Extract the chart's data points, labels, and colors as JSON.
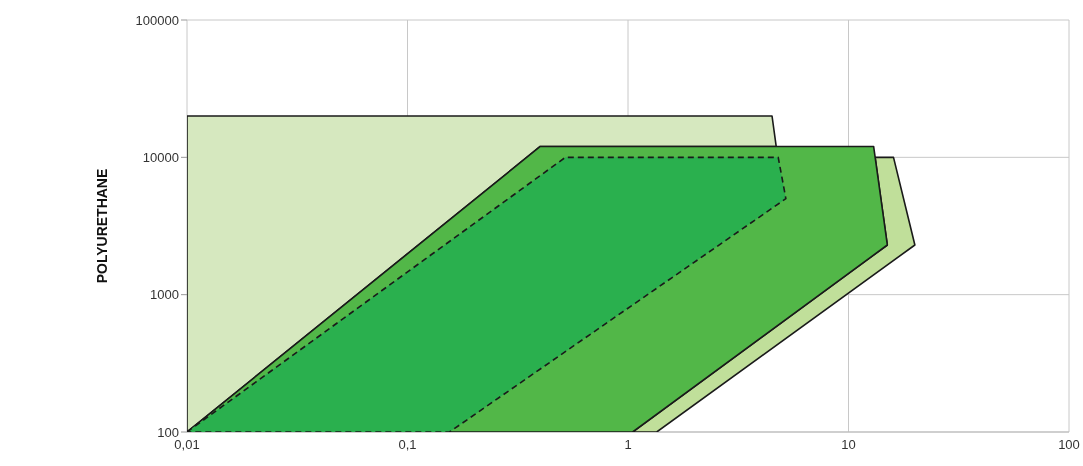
{
  "chart_data": {
    "type": "area",
    "ylabel": "POLYURETHANE",
    "log": "xy",
    "grid": true,
    "marker": "none",
    "xlim": [
      0.01,
      100
    ],
    "xticks": [
      {
        "value": 0.01,
        "label": "0,01"
      },
      {
        "value": 0.1,
        "label": "0,1"
      },
      1,
      10,
      100
    ],
    "ylim": [
      100,
      100000
    ],
    "yticks": [
      100,
      1000,
      10000,
      100000
    ],
    "series": [
      {
        "color": "#d6e8bf",
        "line_style": "solid",
        "x": [
          0.01,
          0.01,
          4.5,
          4.7,
          0.4
        ],
        "values": [
          100,
          20000,
          20000,
          12000,
          12000
        ]
      },
      {
        "color": "#c0df9a",
        "line_style": "solid",
        "x": [
          13.2,
          16,
          20,
          1.35,
          1.05,
          15
        ],
        "values": [
          10000,
          10000,
          2300,
          100,
          100,
          2300
        ]
      },
      {
        "color": "#52b748",
        "line_style": "solid",
        "x": [
          0.01,
          0.4,
          13,
          15,
          1.05
        ],
        "values": [
          100,
          12000,
          12000,
          2300,
          100
        ]
      },
      {
        "color": "#2ab04e",
        "line_style": "dashed",
        "x": [
          0.01,
          0.52,
          4.8,
          5.2,
          0.155
        ],
        "values": [
          100,
          10000,
          10000,
          5000,
          100
        ]
      }
    ]
  }
}
